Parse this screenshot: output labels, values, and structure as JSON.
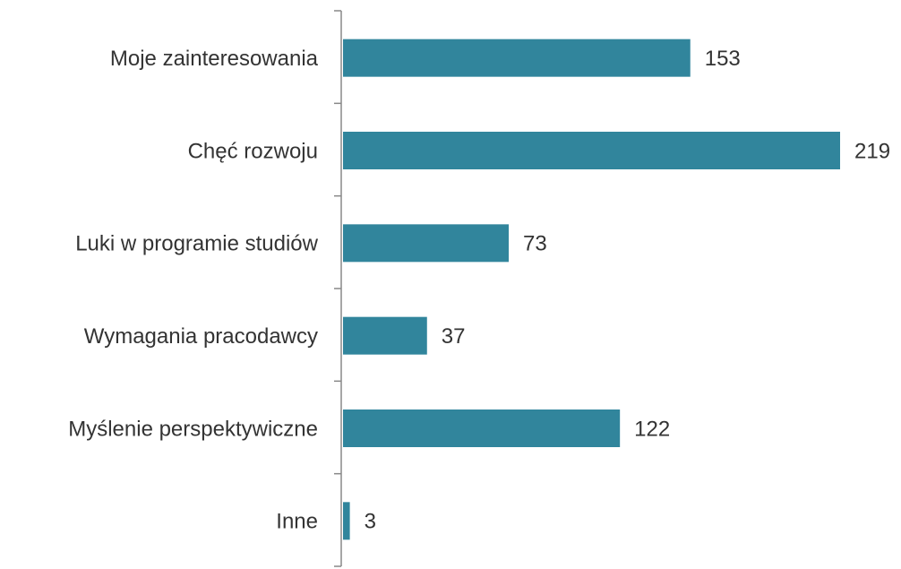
{
  "chart_data": {
    "type": "bar",
    "orientation": "horizontal",
    "categories": [
      "Moje zainteresowania",
      "Chęć rozwoju",
      "Luki w programie studiów",
      "Wymagania pracodawcy",
      "Myślenie perspektywiczne",
      "Inne"
    ],
    "values": [
      153,
      219,
      73,
      37,
      122,
      3
    ],
    "color": "#31859c"
  }
}
